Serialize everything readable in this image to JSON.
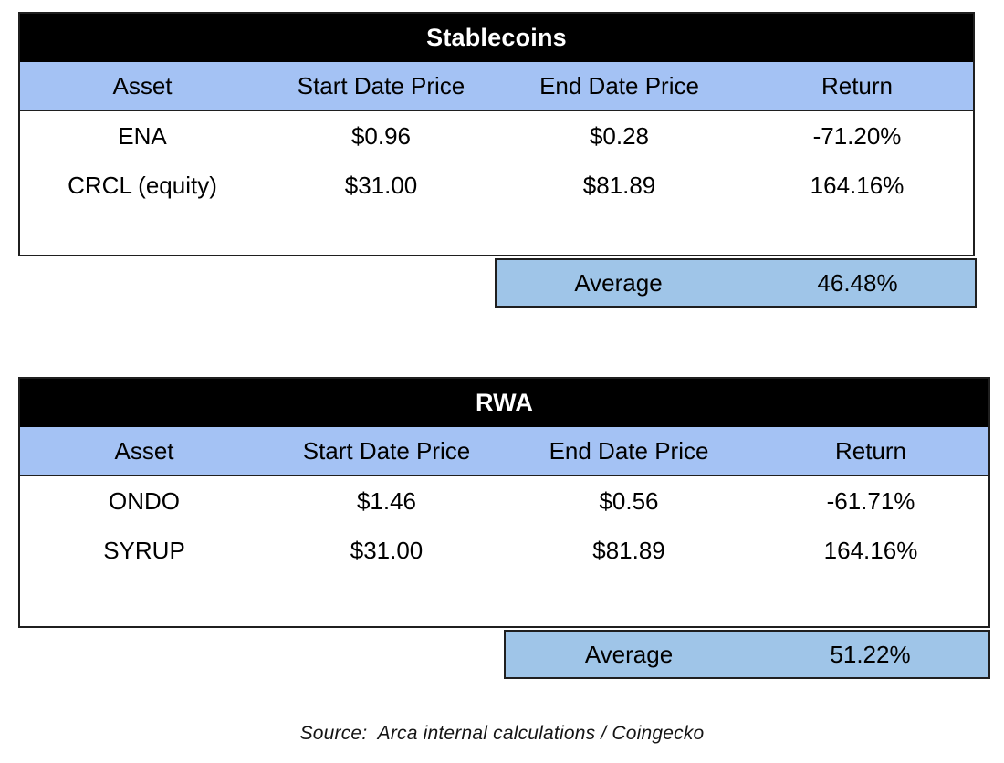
{
  "colors": {
    "title_bar_bg": "#000000",
    "title_bar_text": "#ffffff",
    "column_header_bg": "#a4c2f4",
    "average_row_bg": "#9fc5e8",
    "border": "#1f1f1f",
    "body_text": "#000000",
    "page_bg": "#ffffff"
  },
  "chart_data": [
    {
      "type": "table",
      "title": "Stablecoins",
      "columns": [
        "Asset",
        "Start Date Price",
        "End Date Price",
        "Return"
      ],
      "rows": [
        [
          "ENA",
          "$0.96",
          "$0.28",
          "-71.20%"
        ],
        [
          "CRCL (equity)",
          "$31.00",
          "$81.89",
          "164.16%"
        ]
      ],
      "average": {
        "label": "Average",
        "value": "46.48%"
      }
    },
    {
      "type": "table",
      "title": "RWA",
      "columns": [
        "Asset",
        "Start Date Price",
        "End Date Price",
        "Return"
      ],
      "rows": [
        [
          "ONDO",
          "$1.46",
          "$0.56",
          "-61.71%"
        ],
        [
          "SYRUP",
          "$31.00",
          "$81.89",
          "164.16%"
        ]
      ],
      "average": {
        "label": "Average",
        "value": "51.22%"
      }
    }
  ],
  "source_note": "Source:  Arca internal calculations / Coingecko"
}
